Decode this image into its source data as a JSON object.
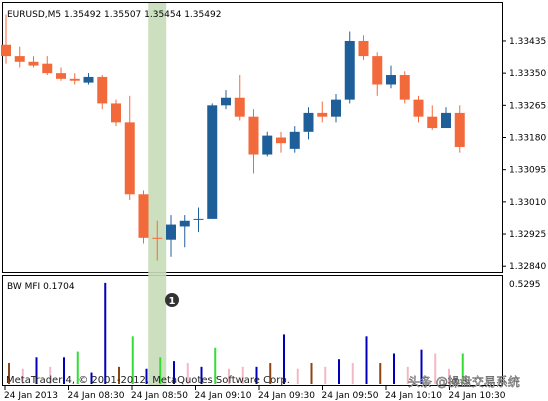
{
  "chart_data": {
    "type": "candlestick",
    "main_header": "EURUSD,M5  1.35492 1.35507 1.35454 1.35492",
    "price_ticks": [
      "1.33435",
      "1.33350",
      "1.33265",
      "1.33180",
      "1.33095",
      "1.33010",
      "1.32925",
      "1.32840"
    ],
    "price_tick_values": [
      1.33435,
      1.3335,
      1.33265,
      1.3318,
      1.33095,
      1.3301,
      1.32925,
      1.3284
    ],
    "ylim": [
      1.3283,
      1.3353
    ],
    "candles": [
      {
        "o": 1.33425,
        "h": 1.33505,
        "l": 1.33375,
        "c": 1.33395
      },
      {
        "o": 1.33395,
        "h": 1.3342,
        "l": 1.33365,
        "c": 1.3338
      },
      {
        "o": 1.3338,
        "h": 1.33395,
        "l": 1.33365,
        "c": 1.3337
      },
      {
        "o": 1.33375,
        "h": 1.33395,
        "l": 1.33345,
        "c": 1.3335
      },
      {
        "o": 1.3335,
        "h": 1.33365,
        "l": 1.3333,
        "c": 1.33335
      },
      {
        "o": 1.33335,
        "h": 1.3335,
        "l": 1.3332,
        "c": 1.3333
      },
      {
        "o": 1.33325,
        "h": 1.3335,
        "l": 1.3332,
        "c": 1.3334
      },
      {
        "o": 1.3334,
        "h": 1.33345,
        "l": 1.33255,
        "c": 1.3327
      },
      {
        "o": 1.3327,
        "h": 1.3328,
        "l": 1.3321,
        "c": 1.3322
      },
      {
        "o": 1.3322,
        "h": 1.3329,
        "l": 1.33015,
        "c": 1.3303
      },
      {
        "o": 1.3303,
        "h": 1.3304,
        "l": 1.329,
        "c": 1.32915
      },
      {
        "o": 1.32915,
        "h": 1.3296,
        "l": 1.32855,
        "c": 1.32915
      },
      {
        "o": 1.3291,
        "h": 1.32975,
        "l": 1.32865,
        "c": 1.3295
      },
      {
        "o": 1.32945,
        "h": 1.32975,
        "l": 1.3289,
        "c": 1.3296
      },
      {
        "o": 1.32965,
        "h": 1.32995,
        "l": 1.3293,
        "c": 1.32965
      },
      {
        "o": 1.32965,
        "h": 1.3327,
        "l": 1.32965,
        "c": 1.33265
      },
      {
        "o": 1.33265,
        "h": 1.33305,
        "l": 1.33255,
        "c": 1.33285
      },
      {
        "o": 1.33285,
        "h": 1.33345,
        "l": 1.33225,
        "c": 1.33235
      },
      {
        "o": 1.33235,
        "h": 1.33255,
        "l": 1.33085,
        "c": 1.33135
      },
      {
        "o": 1.33135,
        "h": 1.33195,
        "l": 1.3313,
        "c": 1.33185
      },
      {
        "o": 1.3318,
        "h": 1.33195,
        "l": 1.3314,
        "c": 1.33165
      },
      {
        "o": 1.3315,
        "h": 1.3321,
        "l": 1.3314,
        "c": 1.33195
      },
      {
        "o": 1.33195,
        "h": 1.3326,
        "l": 1.33175,
        "c": 1.33245
      },
      {
        "o": 1.33245,
        "h": 1.33275,
        "l": 1.3322,
        "c": 1.33235
      },
      {
        "o": 1.33235,
        "h": 1.33295,
        "l": 1.3322,
        "c": 1.3328
      },
      {
        "o": 1.3328,
        "h": 1.3346,
        "l": 1.3327,
        "c": 1.33435
      },
      {
        "o": 1.33435,
        "h": 1.3345,
        "l": 1.33385,
        "c": 1.33395
      },
      {
        "o": 1.33395,
        "h": 1.33405,
        "l": 1.3329,
        "c": 1.3332
      },
      {
        "o": 1.3332,
        "h": 1.3337,
        "l": 1.3331,
        "c": 1.33345
      },
      {
        "o": 1.33345,
        "h": 1.33355,
        "l": 1.3327,
        "c": 1.3328
      },
      {
        "o": 1.3328,
        "h": 1.3329,
        "l": 1.3322,
        "c": 1.33235
      },
      {
        "o": 1.33235,
        "h": 1.33265,
        "l": 1.332,
        "c": 1.33205
      },
      {
        "o": 1.33205,
        "h": 1.3326,
        "l": 1.33205,
        "c": 1.33245
      },
      {
        "o": 1.33245,
        "h": 1.33265,
        "l": 1.3314,
        "c": 1.33155
      }
    ],
    "highlight_candle": 11,
    "marker_label": "1",
    "sub_header": "BW MFI 0.1704",
    "sub_ticks": [
      "0.5295"
    ],
    "sub_ylim": [
      0,
      0.5295
    ],
    "mfi_bars": [
      {
        "v": 0.11,
        "c": "brown"
      },
      {
        "v": 0.08,
        "c": "pink"
      },
      {
        "v": 0.14,
        "c": "blue"
      },
      {
        "v": 0.09,
        "c": "pink"
      },
      {
        "v": 0.14,
        "c": "blue"
      },
      {
        "v": 0.17,
        "c": "green"
      },
      {
        "v": 0.06,
        "c": "blue"
      },
      {
        "v": 0.53,
        "c": "blue"
      },
      {
        "v": 0.09,
        "c": "brown"
      },
      {
        "v": 0.25,
        "c": "green"
      },
      {
        "v": 0.08,
        "c": "blue"
      },
      {
        "v": 0.14,
        "c": "green"
      },
      {
        "v": 0.12,
        "c": "blue"
      },
      {
        "v": 0.11,
        "c": "pink"
      },
      {
        "v": 0.09,
        "c": "blue"
      },
      {
        "v": 0.19,
        "c": "green"
      },
      {
        "v": 0.08,
        "c": "pink"
      },
      {
        "v": 0.09,
        "c": "pink"
      },
      {
        "v": 0.09,
        "c": "blue"
      },
      {
        "v": 0.11,
        "c": "brown"
      },
      {
        "v": 0.26,
        "c": "blue"
      },
      {
        "v": 0.08,
        "c": "pink"
      },
      {
        "v": 0.11,
        "c": "brown"
      },
      {
        "v": 0.09,
        "c": "pink"
      },
      {
        "v": 0.13,
        "c": "blue"
      },
      {
        "v": 0.11,
        "c": "pink"
      },
      {
        "v": 0.25,
        "c": "blue"
      },
      {
        "v": 0.11,
        "c": "brown"
      },
      {
        "v": 0.16,
        "c": "blue"
      },
      {
        "v": 0.09,
        "c": "pink"
      },
      {
        "v": 0.18,
        "c": "blue"
      },
      {
        "v": 0.16,
        "c": "pink"
      },
      {
        "v": 0.08,
        "c": "pink"
      },
      {
        "v": 0.16,
        "c": "green"
      }
    ],
    "time_labels": [
      "24 Jan 2013",
      "24 Jan 08:30",
      "24 Jan 08:50",
      "24 Jan 09:10",
      "24 Jan 09:30",
      "24 Jan 09:50",
      "24 Jan 10:10",
      "24 Jan 10:30"
    ],
    "copyright": "MetaTrader 4, © 2001-2012, MetaQuotes Software Corp.",
    "watermark": "头条 @操盘交易系统",
    "colors": {
      "bull": "#1f5f99",
      "bear": "#f26a3b",
      "highlight": "#c7dbb7",
      "mfi_blue": "#0000bb",
      "mfi_green": "#33dd33",
      "mfi_pink": "#f2b8c6",
      "mfi_brown": "#8b4513",
      "axis": "#000000",
      "grid": "#cccccc"
    }
  }
}
